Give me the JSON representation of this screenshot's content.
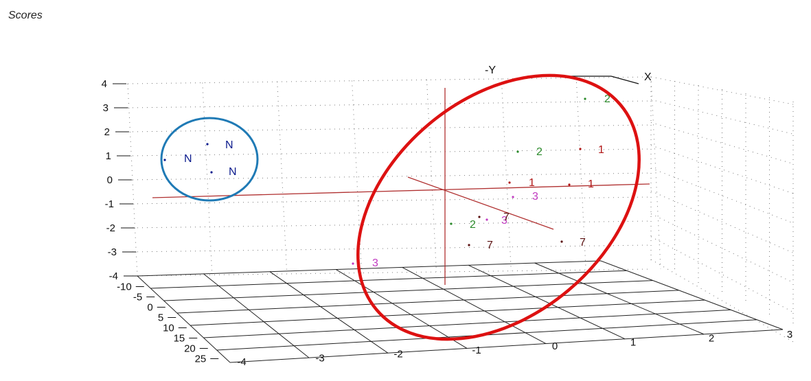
{
  "chart_data": {
    "type": "scatter",
    "title": "Scores",
    "projection": "3d",
    "axis_names": {
      "x_axis": "X",
      "y_axis": "-Y"
    },
    "z_ticks": [
      "4",
      "3",
      "2",
      "1",
      "0",
      "-1",
      "-2",
      "-3",
      "-4"
    ],
    "depth_ticks": [
      "-10",
      "-5",
      "0",
      "5",
      "10",
      "15",
      "20",
      "25"
    ],
    "x_ticks": [
      "-4",
      "-3",
      "-2",
      "-1",
      "0",
      "1",
      "2",
      "3"
    ],
    "grid": true,
    "points": [
      {
        "label": "N",
        "color": "#0a1a8c"
      },
      {
        "label": "N",
        "color": "#0a1a8c"
      },
      {
        "label": "N",
        "color": "#0a1a8c"
      },
      {
        "label": "2",
        "color": "#2a8a2a"
      },
      {
        "label": "2",
        "color": "#2a8a2a"
      },
      {
        "label": "2",
        "color": "#2a8a2a"
      },
      {
        "label": "1",
        "color": "#b01515"
      },
      {
        "label": "1",
        "color": "#b01515"
      },
      {
        "label": "1",
        "color": "#b01515"
      },
      {
        "label": "3",
        "color": "#c03ac0"
      },
      {
        "label": "3",
        "color": "#c03ac0"
      },
      {
        "label": "3",
        "color": "#c03ac0"
      },
      {
        "label": "7",
        "color": "#5a1010"
      },
      {
        "label": "7",
        "color": "#5a1010"
      },
      {
        "label": "7",
        "color": "#5a1010"
      }
    ],
    "annotations": [
      {
        "shape": "ellipse",
        "color": "#1f7ab5",
        "encloses": "N"
      },
      {
        "shape": "ellipse",
        "color": "#dd1111",
        "encloses": "1, 2, 3, 7"
      }
    ]
  }
}
